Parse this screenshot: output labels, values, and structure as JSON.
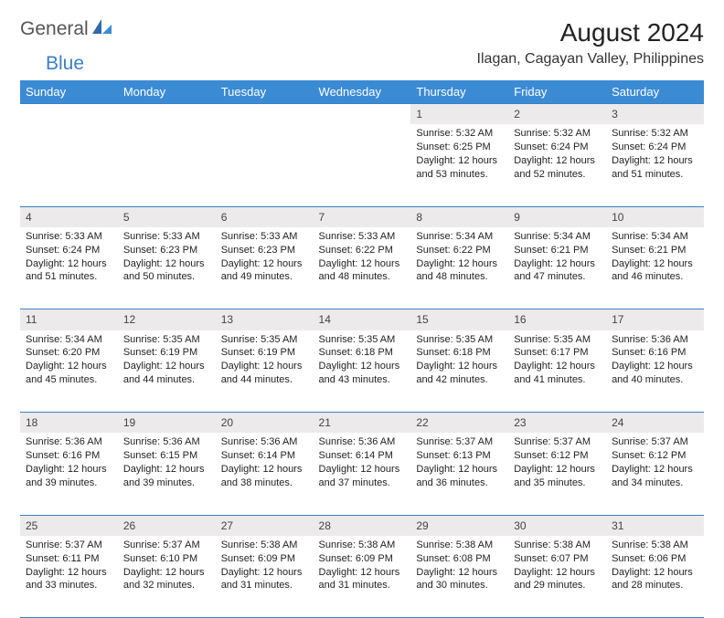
{
  "logo": {
    "part1": "General",
    "part2": "Blue"
  },
  "title": "August 2024",
  "location": "Ilagan, Cagayan Valley, Philippines",
  "colors": {
    "header_bg": "#3b8bd4",
    "accent": "#3b7fc4",
    "daynum_bg": "#eceaea"
  },
  "day_headers": [
    "Sunday",
    "Monday",
    "Tuesday",
    "Wednesday",
    "Thursday",
    "Friday",
    "Saturday"
  ],
  "weeks": [
    [
      null,
      null,
      null,
      null,
      {
        "n": "1",
        "sr": "5:32 AM",
        "ss": "6:25 PM",
        "d1": "12 hours",
        "d2": "and 53 minutes."
      },
      {
        "n": "2",
        "sr": "5:32 AM",
        "ss": "6:24 PM",
        "d1": "12 hours",
        "d2": "and 52 minutes."
      },
      {
        "n": "3",
        "sr": "5:32 AM",
        "ss": "6:24 PM",
        "d1": "12 hours",
        "d2": "and 51 minutes."
      }
    ],
    [
      {
        "n": "4",
        "sr": "5:33 AM",
        "ss": "6:24 PM",
        "d1": "12 hours",
        "d2": "and 51 minutes."
      },
      {
        "n": "5",
        "sr": "5:33 AM",
        "ss": "6:23 PM",
        "d1": "12 hours",
        "d2": "and 50 minutes."
      },
      {
        "n": "6",
        "sr": "5:33 AM",
        "ss": "6:23 PM",
        "d1": "12 hours",
        "d2": "and 49 minutes."
      },
      {
        "n": "7",
        "sr": "5:33 AM",
        "ss": "6:22 PM",
        "d1": "12 hours",
        "d2": "and 48 minutes."
      },
      {
        "n": "8",
        "sr": "5:34 AM",
        "ss": "6:22 PM",
        "d1": "12 hours",
        "d2": "and 48 minutes."
      },
      {
        "n": "9",
        "sr": "5:34 AM",
        "ss": "6:21 PM",
        "d1": "12 hours",
        "d2": "and 47 minutes."
      },
      {
        "n": "10",
        "sr": "5:34 AM",
        "ss": "6:21 PM",
        "d1": "12 hours",
        "d2": "and 46 minutes."
      }
    ],
    [
      {
        "n": "11",
        "sr": "5:34 AM",
        "ss": "6:20 PM",
        "d1": "12 hours",
        "d2": "and 45 minutes."
      },
      {
        "n": "12",
        "sr": "5:35 AM",
        "ss": "6:19 PM",
        "d1": "12 hours",
        "d2": "and 44 minutes."
      },
      {
        "n": "13",
        "sr": "5:35 AM",
        "ss": "6:19 PM",
        "d1": "12 hours",
        "d2": "and 44 minutes."
      },
      {
        "n": "14",
        "sr": "5:35 AM",
        "ss": "6:18 PM",
        "d1": "12 hours",
        "d2": "and 43 minutes."
      },
      {
        "n": "15",
        "sr": "5:35 AM",
        "ss": "6:18 PM",
        "d1": "12 hours",
        "d2": "and 42 minutes."
      },
      {
        "n": "16",
        "sr": "5:35 AM",
        "ss": "6:17 PM",
        "d1": "12 hours",
        "d2": "and 41 minutes."
      },
      {
        "n": "17",
        "sr": "5:36 AM",
        "ss": "6:16 PM",
        "d1": "12 hours",
        "d2": "and 40 minutes."
      }
    ],
    [
      {
        "n": "18",
        "sr": "5:36 AM",
        "ss": "6:16 PM",
        "d1": "12 hours",
        "d2": "and 39 minutes."
      },
      {
        "n": "19",
        "sr": "5:36 AM",
        "ss": "6:15 PM",
        "d1": "12 hours",
        "d2": "and 39 minutes."
      },
      {
        "n": "20",
        "sr": "5:36 AM",
        "ss": "6:14 PM",
        "d1": "12 hours",
        "d2": "and 38 minutes."
      },
      {
        "n": "21",
        "sr": "5:36 AM",
        "ss": "6:14 PM",
        "d1": "12 hours",
        "d2": "and 37 minutes."
      },
      {
        "n": "22",
        "sr": "5:37 AM",
        "ss": "6:13 PM",
        "d1": "12 hours",
        "d2": "and 36 minutes."
      },
      {
        "n": "23",
        "sr": "5:37 AM",
        "ss": "6:12 PM",
        "d1": "12 hours",
        "d2": "and 35 minutes."
      },
      {
        "n": "24",
        "sr": "5:37 AM",
        "ss": "6:12 PM",
        "d1": "12 hours",
        "d2": "and 34 minutes."
      }
    ],
    [
      {
        "n": "25",
        "sr": "5:37 AM",
        "ss": "6:11 PM",
        "d1": "12 hours",
        "d2": "and 33 minutes."
      },
      {
        "n": "26",
        "sr": "5:37 AM",
        "ss": "6:10 PM",
        "d1": "12 hours",
        "d2": "and 32 minutes."
      },
      {
        "n": "27",
        "sr": "5:38 AM",
        "ss": "6:09 PM",
        "d1": "12 hours",
        "d2": "and 31 minutes."
      },
      {
        "n": "28",
        "sr": "5:38 AM",
        "ss": "6:09 PM",
        "d1": "12 hours",
        "d2": "and 31 minutes."
      },
      {
        "n": "29",
        "sr": "5:38 AM",
        "ss": "6:08 PM",
        "d1": "12 hours",
        "d2": "and 30 minutes."
      },
      {
        "n": "30",
        "sr": "5:38 AM",
        "ss": "6:07 PM",
        "d1": "12 hours",
        "d2": "and 29 minutes."
      },
      {
        "n": "31",
        "sr": "5:38 AM",
        "ss": "6:06 PM",
        "d1": "12 hours",
        "d2": "and 28 minutes."
      }
    ]
  ],
  "labels": {
    "sunrise": "Sunrise:",
    "sunset": "Sunset:",
    "daylight": "Daylight:"
  }
}
